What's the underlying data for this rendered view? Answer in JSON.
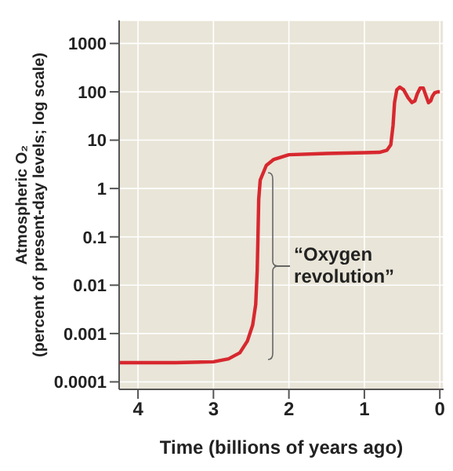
{
  "chart_data": {
    "type": "line",
    "xlabel": "Time (billions of years ago)",
    "ylabel": "Atmospheric O₂\n(percent of present-day levels; log scale)",
    "x": [
      4.25,
      3.5,
      3.0,
      2.8,
      2.65,
      2.55,
      2.48,
      2.44,
      2.42,
      2.41,
      2.4,
      2.38,
      2.3,
      2.2,
      2.0,
      1.5,
      1.0,
      0.8,
      0.7,
      0.65,
      0.62,
      0.6,
      0.57,
      0.53,
      0.48,
      0.42,
      0.37,
      0.33,
      0.3,
      0.26,
      0.22,
      0.18,
      0.15,
      0.12,
      0.1,
      0.07,
      0.03,
      0.0
    ],
    "series": [
      {
        "color": "#d7282f",
        "values": [
          0.00025,
          0.00025,
          0.00026,
          0.0003,
          0.0004,
          0.0007,
          0.0015,
          0.004,
          0.02,
          0.1,
          0.6,
          1.5,
          3,
          4,
          5,
          5.3,
          5.5,
          5.6,
          6.2,
          8,
          20,
          60,
          110,
          125,
          110,
          75,
          60,
          65,
          90,
          120,
          120,
          80,
          60,
          65,
          80,
          95,
          100,
          100
        ]
      }
    ],
    "xlim": [
      4.25,
      -0.05
    ],
    "xticks": [
      4,
      3,
      2,
      1,
      0
    ],
    "ylim": [
      7e-05,
      3000
    ],
    "yticks": [
      0.0001,
      0.001,
      0.01,
      0.1,
      1,
      10,
      100,
      1000
    ],
    "log": "y",
    "grid": true,
    "legend": false,
    "marker": "none",
    "line_style": "solid",
    "annotations": [
      "“Oxygen\nrevolution”"
    ]
  }
}
